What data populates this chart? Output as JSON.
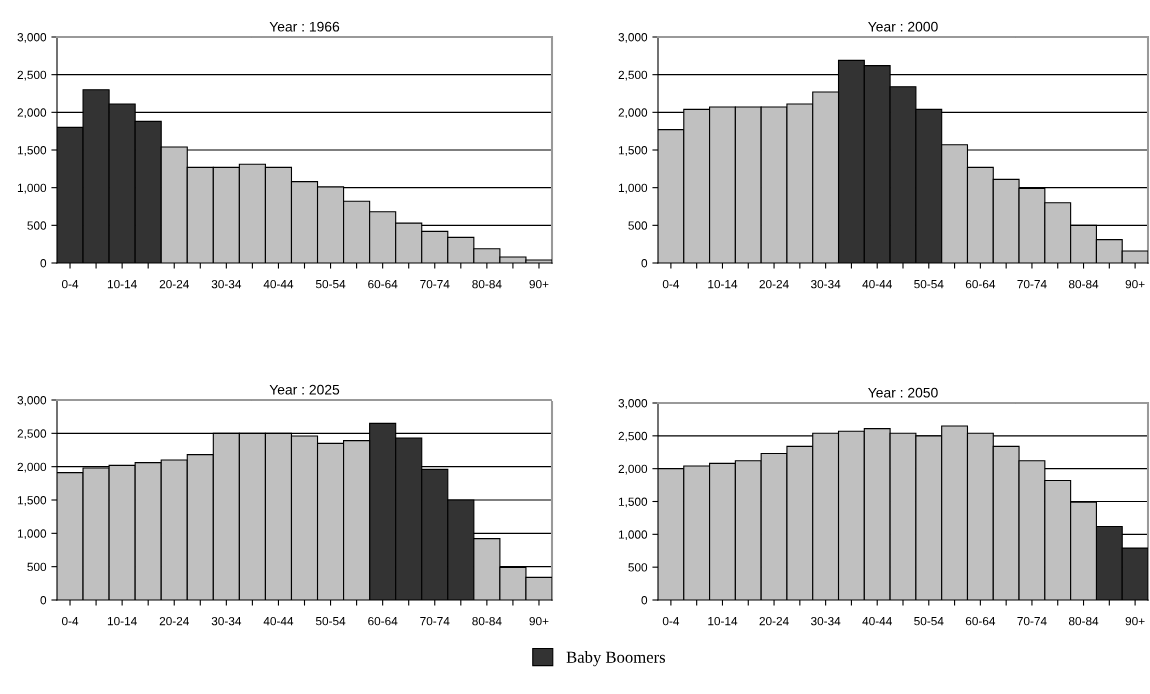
{
  "chart_data": [
    {
      "type": "bar",
      "title": "Year : 1966",
      "categories": [
        "0-4",
        null,
        "10-14",
        null,
        "20-24",
        null,
        "30-34",
        null,
        "40-44",
        null,
        "50-54",
        null,
        "60-64",
        null,
        "70-74",
        null,
        "80-84",
        null,
        "90+"
      ],
      "ylim": [
        0,
        3000
      ],
      "yticks": [
        {
          "value": 0,
          "label": "0"
        },
        {
          "value": 500,
          "label": "500"
        },
        {
          "value": 1000,
          "label": "1,000"
        },
        {
          "value": 1500,
          "label": "1,500"
        },
        {
          "value": 2000,
          "label": "2,000"
        },
        {
          "value": 2500,
          "label": "2,500"
        },
        {
          "value": 3000,
          "label": "3,000"
        }
      ],
      "grid": "y",
      "series": [
        {
          "color": "#333333",
          "values": [
            1800,
            2300,
            2110,
            1880,
            null,
            null,
            null,
            null,
            null,
            null,
            null,
            null,
            null,
            null,
            null,
            null,
            null,
            null,
            null
          ]
        },
        {
          "color": "#c0c0c0",
          "values": [
            null,
            null,
            null,
            null,
            1540,
            1270,
            1270,
            1310,
            1270,
            1080,
            1010,
            820,
            680,
            530,
            420,
            340,
            190,
            80,
            40
          ]
        }
      ]
    },
    {
      "type": "bar",
      "title": "Year : 2000",
      "categories": [
        "0-4",
        null,
        "10-14",
        null,
        "20-24",
        null,
        "30-34",
        null,
        "40-44",
        null,
        "50-54",
        null,
        "60-64",
        null,
        "70-74",
        null,
        "80-84",
        null,
        "90+"
      ],
      "ylim": [
        0,
        3000
      ],
      "yticks": [
        {
          "value": 0,
          "label": "0"
        },
        {
          "value": 500,
          "label": "500"
        },
        {
          "value": 1000,
          "label": "1,000"
        },
        {
          "value": 1500,
          "label": "1,500"
        },
        {
          "value": 2000,
          "label": "2,000"
        },
        {
          "value": 2500,
          "label": "2,500"
        },
        {
          "value": 3000,
          "label": "3,000"
        }
      ],
      "grid": "y",
      "series": [
        {
          "color": "#333333",
          "values": [
            null,
            null,
            null,
            null,
            null,
            null,
            null,
            2690,
            2620,
            2340,
            2040,
            null,
            null,
            null,
            null,
            null,
            null,
            null,
            null
          ]
        },
        {
          "color": "#c0c0c0",
          "values": [
            1770,
            2040,
            2070,
            2070,
            2070,
            2110,
            2270,
            null,
            null,
            null,
            null,
            1570,
            1270,
            1110,
            990,
            800,
            500,
            310,
            160
          ]
        }
      ]
    },
    {
      "type": "bar",
      "title": "Year : 2025",
      "categories": [
        "0-4",
        null,
        "10-14",
        null,
        "20-24",
        null,
        "30-34",
        null,
        "40-44",
        null,
        "50-54",
        null,
        "60-64",
        null,
        "70-74",
        null,
        "80-84",
        null,
        "90+"
      ],
      "ylim": [
        0,
        3000
      ],
      "yticks": [
        {
          "value": 0,
          "label": "0"
        },
        {
          "value": 500,
          "label": "500"
        },
        {
          "value": 1000,
          "label": "1,000"
        },
        {
          "value": 1500,
          "label": "1,500"
        },
        {
          "value": 2000,
          "label": "2,000"
        },
        {
          "value": 2500,
          "label": "2,500"
        },
        {
          "value": 3000,
          "label": "3,000"
        }
      ],
      "grid": "y",
      "series": [
        {
          "color": "#333333",
          "values": [
            null,
            null,
            null,
            null,
            null,
            null,
            null,
            null,
            null,
            null,
            null,
            null,
            2650,
            2430,
            1960,
            1500,
            null,
            null,
            null
          ]
        },
        {
          "color": "#c0c0c0",
          "values": [
            1910,
            1980,
            2020,
            2060,
            2100,
            2180,
            2500,
            2500,
            2500,
            2460,
            2350,
            2390,
            null,
            null,
            null,
            null,
            920,
            490,
            340
          ]
        }
      ]
    },
    {
      "type": "bar",
      "title": "Year : 2050",
      "categories": [
        "0-4",
        null,
        "10-14",
        null,
        "20-24",
        null,
        "30-34",
        null,
        "40-44",
        null,
        "50-54",
        null,
        "60-64",
        null,
        "70-74",
        null,
        "80-84",
        null,
        "90+"
      ],
      "ylim": [
        0,
        3000
      ],
      "yticks": [
        {
          "value": 0,
          "label": "0"
        },
        {
          "value": 500,
          "label": "500"
        },
        {
          "value": 1000,
          "label": "1,000"
        },
        {
          "value": 1500,
          "label": "1,500"
        },
        {
          "value": 2000,
          "label": "2,000"
        },
        {
          "value": 2500,
          "label": "2,500"
        },
        {
          "value": 3000,
          "label": "3,000"
        }
      ],
      "grid": "y",
      "legend": "bottom",
      "series": [
        {
          "name": "Baby Boomers",
          "color": "#333333",
          "values": [
            null,
            null,
            null,
            null,
            null,
            null,
            null,
            null,
            null,
            null,
            null,
            null,
            null,
            null,
            null,
            null,
            null,
            1120,
            790
          ]
        },
        {
          "color": "#c0c0c0",
          "values": [
            2000,
            2040,
            2080,
            2120,
            2230,
            2340,
            2540,
            2570,
            2610,
            2540,
            2500,
            2650,
            2540,
            2340,
            2120,
            1820,
            1490,
            null,
            null
          ]
        }
      ]
    }
  ]
}
